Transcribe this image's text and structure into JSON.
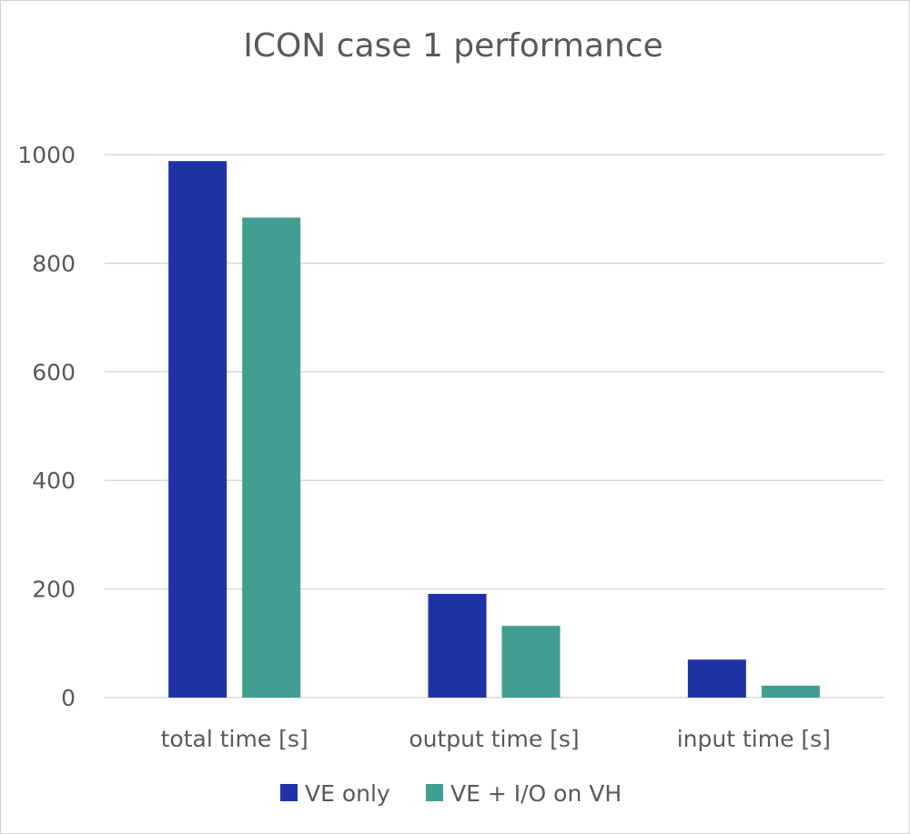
{
  "chart_data": {
    "type": "bar",
    "title": "ICON case 1 performance",
    "xlabel": "",
    "ylabel": "",
    "categories": [
      "total time [s]",
      "output time [s]",
      "input time [s]"
    ],
    "series": [
      {
        "name": "VE only",
        "color": "#1f33a6",
        "values": [
          988,
          191,
          70
        ]
      },
      {
        "name": "VE + I/O on VH",
        "color": "#429e91",
        "values": [
          884,
          132,
          22
        ]
      }
    ],
    "ylim": [
      0,
      1000
    ],
    "yticks": [
      0,
      200,
      400,
      600,
      800,
      1000
    ],
    "grid": true,
    "legend_position": "bottom"
  }
}
